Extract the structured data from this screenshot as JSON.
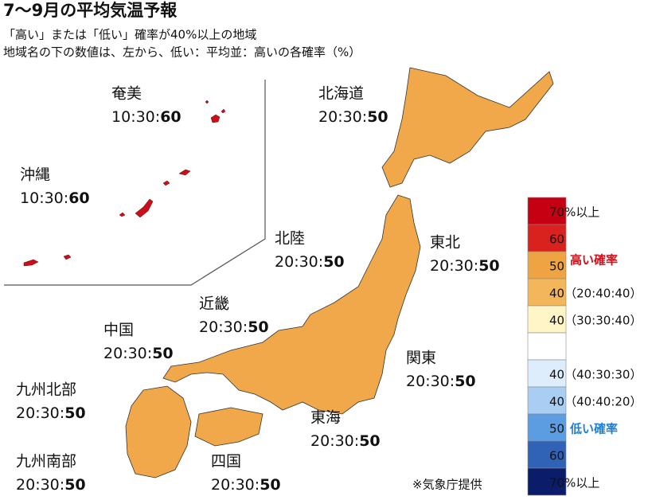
{
  "header": {
    "title": "7～9月の平均気温予報",
    "subtitle_lines": [
      "「高い」または「低い」確率が40%以上の地域",
      "地域名の下の数値は、左から、低い：平均並：高いの各確率（%）"
    ]
  },
  "separator": ":",
  "regions": [
    {
      "name": "奄美",
      "low": 10,
      "normal": 30,
      "high": 60
    },
    {
      "name": "沖縄",
      "low": 10,
      "normal": 30,
      "high": 60
    },
    {
      "name": "北海道",
      "low": 20,
      "normal": 30,
      "high": 50
    },
    {
      "name": "北陸",
      "low": 20,
      "normal": 30,
      "high": 50
    },
    {
      "name": "東北",
      "low": 20,
      "normal": 30,
      "high": 50
    },
    {
      "name": "近畿",
      "low": 20,
      "normal": 30,
      "high": 50
    },
    {
      "name": "中国",
      "low": 20,
      "normal": 30,
      "high": 50
    },
    {
      "name": "関東",
      "low": 20,
      "normal": 30,
      "high": 50
    },
    {
      "name": "九州北部",
      "low": 20,
      "normal": 30,
      "high": 50
    },
    {
      "name": "東海",
      "low": 20,
      "normal": 30,
      "high": 50
    },
    {
      "name": "九州南部",
      "low": 20,
      "normal": 30,
      "high": 50
    },
    {
      "name": "四国",
      "low": 20,
      "normal": 30,
      "high": 50
    }
  ],
  "legend": {
    "items": [
      {
        "color": "#c40012",
        "label": "70%以上"
      },
      {
        "color": "#d9221e",
        "label": "60"
      },
      {
        "color": "#efa444",
        "label": "50"
      },
      {
        "color": "#f3b65a",
        "label": "40（20:40:40）"
      },
      {
        "color": "#fff5c6",
        "label": "40（30:30:40）"
      },
      {
        "color": "#ffffff"
      },
      {
        "color": "#deedfc",
        "label": "40（40:30:30）"
      },
      {
        "color": "#a9cdf3",
        "label": "40（40:40:20）"
      },
      {
        "color": "#5c9ce0",
        "label": "50"
      },
      {
        "color": "#3062b6",
        "label": "60"
      },
      {
        "color": "#0b1d6a",
        "label": "70%以上"
      }
    ],
    "high_label": {
      "text": "高い確率",
      "color": "#d0101a"
    },
    "low_label": {
      "text": "低い確率",
      "color": "#1f7fd0"
    }
  },
  "source": "※気象庁提供"
}
